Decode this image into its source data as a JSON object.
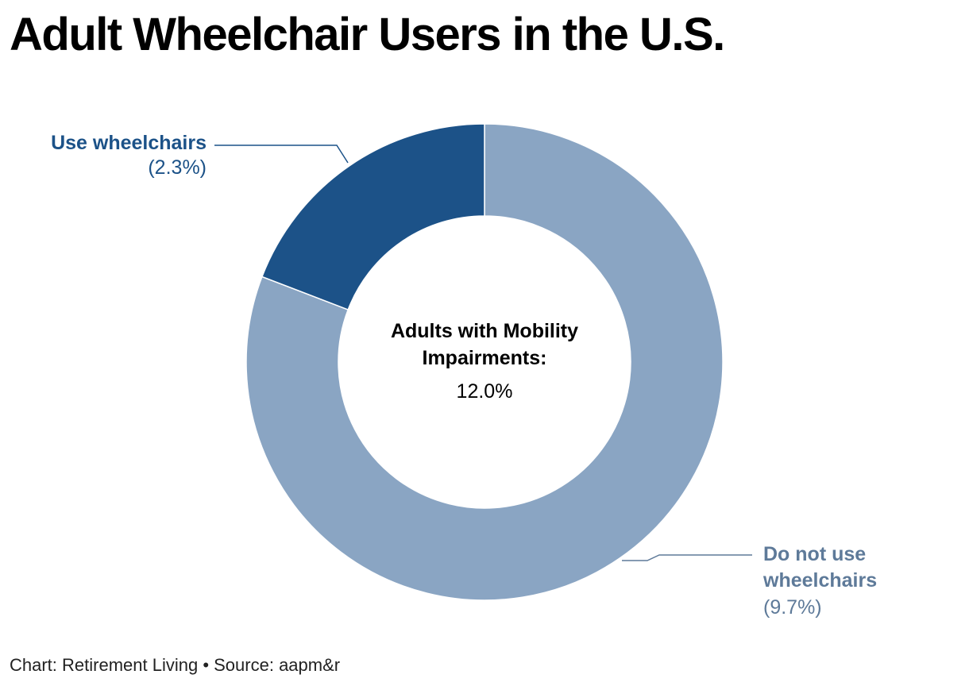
{
  "chart_data": {
    "type": "donut",
    "title": "Adult Wheelchair Users in the U.S.",
    "center": {
      "title": "Adults with Mobility Impairments:",
      "value_label": "12.0%",
      "value": 12.0
    },
    "slices": [
      {
        "name": "Do not use wheelchairs",
        "value": 9.7,
        "pct_label": "(9.7%)",
        "color": "#8aa5c3"
      },
      {
        "name": "Use wheelchairs",
        "value": 2.3,
        "pct_label": "(2.3%)",
        "color": "#1c5288"
      }
    ],
    "label_colors": {
      "use": "#1c5288",
      "not_use": "#5e7a99"
    },
    "source": "Chart: Retirement Living • Source: aapm&r"
  }
}
